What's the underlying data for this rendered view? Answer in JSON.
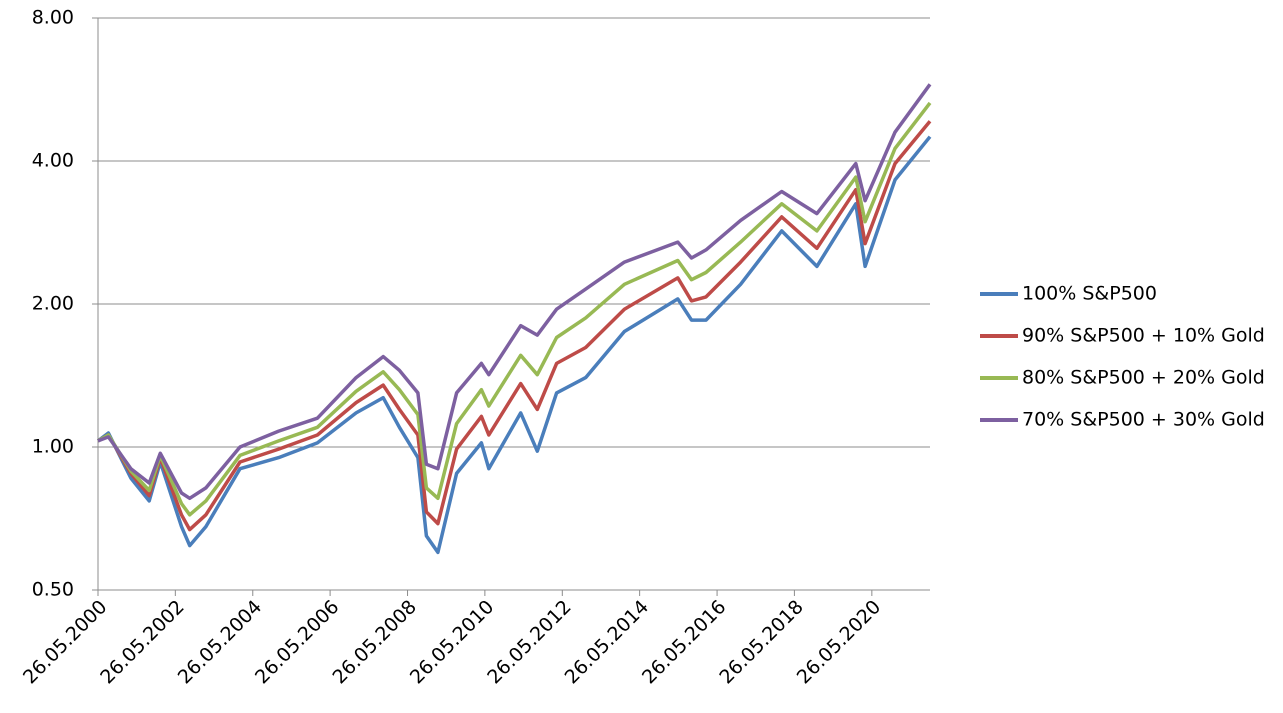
{
  "chart_data": {
    "type": "line",
    "x": [
      "2000-05-26",
      "2000-09-01",
      "2001-04-02",
      "2001-09-21",
      "2002-01-04",
      "2002-07-23",
      "2002-10-09",
      "2003-03-11",
      "2004-01-26",
      "2005-01-26",
      "2006-01-26",
      "2007-01-26",
      "2007-10-09",
      "2008-03-10",
      "2008-09-01",
      "2008-11-20",
      "2009-03-09",
      "2009-09-01",
      "2010-04-23",
      "2010-07-02",
      "2011-04-29",
      "2011-10-03",
      "2012-04-02",
      "2013-01-02",
      "2014-01-02",
      "2015-05-21",
      "2015-09-28",
      "2016-02-11",
      "2017-01-03",
      "2018-01-26",
      "2018-12-24",
      "2019-12-27",
      "2020-03-23",
      "2020-12-31",
      "2021-11-26"
    ],
    "series": [
      {
        "name": "100% S&P500",
        "color": "#4a7ebb",
        "values": [
          1.03,
          1.07,
          0.86,
          0.77,
          0.93,
          0.68,
          0.62,
          0.68,
          0.9,
          0.95,
          1.02,
          1.18,
          1.27,
          1.1,
          0.95,
          0.65,
          0.6,
          0.88,
          1.02,
          0.9,
          1.18,
          0.98,
          1.3,
          1.4,
          1.75,
          2.05,
          1.85,
          1.85,
          2.2,
          2.85,
          2.4,
          3.25,
          2.4,
          3.65,
          4.5
        ]
      },
      {
        "name": "90% S&P500 + 10% Gold",
        "color": "#be4b48",
        "values": [
          1.03,
          1.06,
          0.88,
          0.79,
          0.95,
          0.72,
          0.67,
          0.72,
          0.93,
          0.99,
          1.06,
          1.24,
          1.35,
          1.2,
          1.06,
          0.73,
          0.69,
          0.99,
          1.16,
          1.06,
          1.36,
          1.2,
          1.5,
          1.62,
          1.95,
          2.27,
          2.03,
          2.07,
          2.45,
          3.05,
          2.62,
          3.48,
          2.68,
          3.95,
          4.85
        ]
      },
      {
        "name": "80% S&P500 + 20% Gold",
        "color": "#98b954",
        "values": [
          1.03,
          1.06,
          0.89,
          0.81,
          0.96,
          0.76,
          0.72,
          0.77,
          0.96,
          1.03,
          1.1,
          1.31,
          1.44,
          1.32,
          1.17,
          0.82,
          0.78,
          1.12,
          1.32,
          1.22,
          1.56,
          1.42,
          1.7,
          1.87,
          2.2,
          2.47,
          2.25,
          2.33,
          2.7,
          3.25,
          2.85,
          3.7,
          2.98,
          4.25,
          5.3
        ]
      },
      {
        "name": "70% S&P500 + 30% Gold",
        "color": "#7d60a0",
        "values": [
          1.03,
          1.05,
          0.9,
          0.84,
          0.97,
          0.8,
          0.78,
          0.82,
          1.0,
          1.08,
          1.15,
          1.4,
          1.55,
          1.45,
          1.3,
          0.92,
          0.9,
          1.3,
          1.5,
          1.42,
          1.8,
          1.72,
          1.95,
          2.15,
          2.45,
          2.7,
          2.5,
          2.6,
          3.0,
          3.45,
          3.1,
          3.95,
          3.3,
          4.6,
          5.8
        ]
      }
    ],
    "xlim": [
      "2000-05-26",
      "2021-11-26"
    ],
    "xticks": [
      {
        "value": "2000-05-26",
        "label": "26.05.2000"
      },
      {
        "value": "2002-05-26",
        "label": "26.05.2002"
      },
      {
        "value": "2004-05-26",
        "label": "26.05.2004"
      },
      {
        "value": "2006-05-26",
        "label": "26.05.2006"
      },
      {
        "value": "2008-05-26",
        "label": "26.05.2008"
      },
      {
        "value": "2010-05-26",
        "label": "26.05.2010"
      },
      {
        "value": "2012-05-26",
        "label": "26.05.2012"
      },
      {
        "value": "2014-05-26",
        "label": "26.05.2014"
      },
      {
        "value": "2016-05-26",
        "label": "26.05.2016"
      },
      {
        "value": "2018-05-26",
        "label": "26.05.2018"
      },
      {
        "value": "2020-05-26",
        "label": "26.05.2020"
      }
    ],
    "ylim": [
      0.5,
      8
    ],
    "yticks": [
      {
        "value": 0.5,
        "label": "0.50"
      },
      {
        "value": 1,
        "label": "1.00"
      },
      {
        "value": 2,
        "label": "2.00"
      },
      {
        "value": 4,
        "label": "4.00"
      },
      {
        "value": 8,
        "label": "8.00"
      }
    ],
    "log_scale_y": true,
    "grid": true,
    "legend": "right"
  }
}
